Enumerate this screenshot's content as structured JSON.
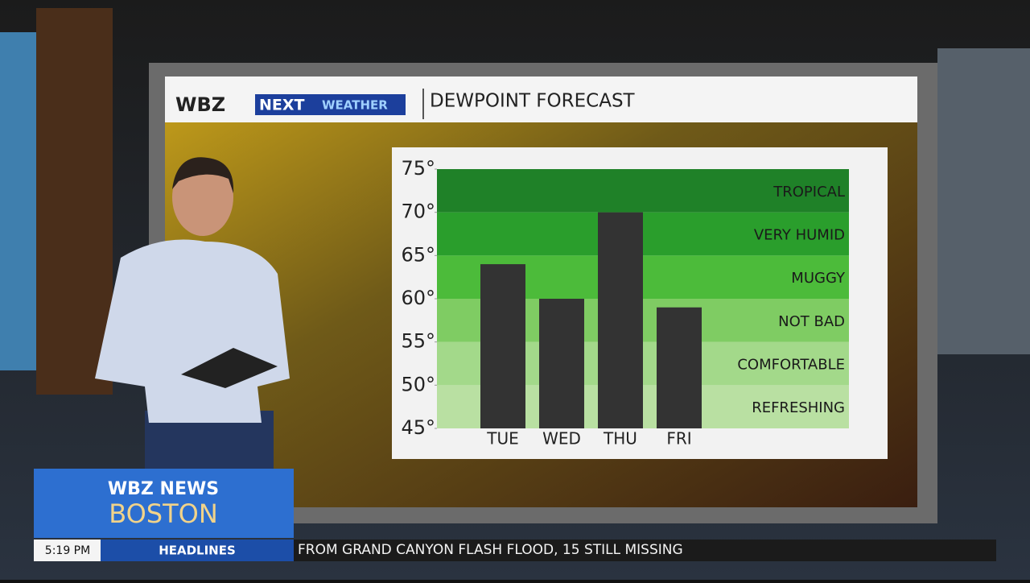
{
  "brand": {
    "station": "WBZ",
    "product": "NEXT",
    "section": "WEATHER"
  },
  "chart_data": {
    "type": "bar",
    "title": "DEWPOINT FORECAST",
    "categories": [
      "TUE",
      "WED",
      "THU",
      "FRI"
    ],
    "values": [
      64,
      60,
      70,
      59
    ],
    "color": "#333333",
    "ylim": [
      45,
      75
    ],
    "yticks": [
      {
        "value": 45,
        "label": "45°"
      },
      {
        "value": 50,
        "label": "50°"
      },
      {
        "value": 55,
        "label": "55°"
      },
      {
        "value": 60,
        "label": "60°"
      },
      {
        "value": 65,
        "label": "65°"
      },
      {
        "value": 70,
        "label": "70°"
      },
      {
        "value": 75,
        "label": "75°"
      }
    ],
    "zones": [
      {
        "label": "REFRESHING",
        "from": 45,
        "to": 50,
        "color": "#b9e0a2"
      },
      {
        "label": "COMFORTABLE",
        "from": 50,
        "to": 55,
        "color": "#a3d98a"
      },
      {
        "label": "NOT BAD",
        "from": 55,
        "to": 60,
        "color": "#7fcc63"
      },
      {
        "label": "MUGGY",
        "from": 60,
        "to": 65,
        "color": "#4cbb3a"
      },
      {
        "label": "VERY HUMID",
        "from": 65,
        "to": 70,
        "color": "#2a9e2c"
      },
      {
        "label": "TROPICAL",
        "from": 70,
        "to": 75,
        "color": "#1f8128"
      }
    ]
  },
  "lower_third": {
    "network": "WBZ NEWS",
    "city": "BOSTON",
    "time": "5:19 PM",
    "segment": "HEADLINES",
    "ticker": "FROM GRAND CANYON FLASH FLOOD, 15 STILL MISSING"
  }
}
